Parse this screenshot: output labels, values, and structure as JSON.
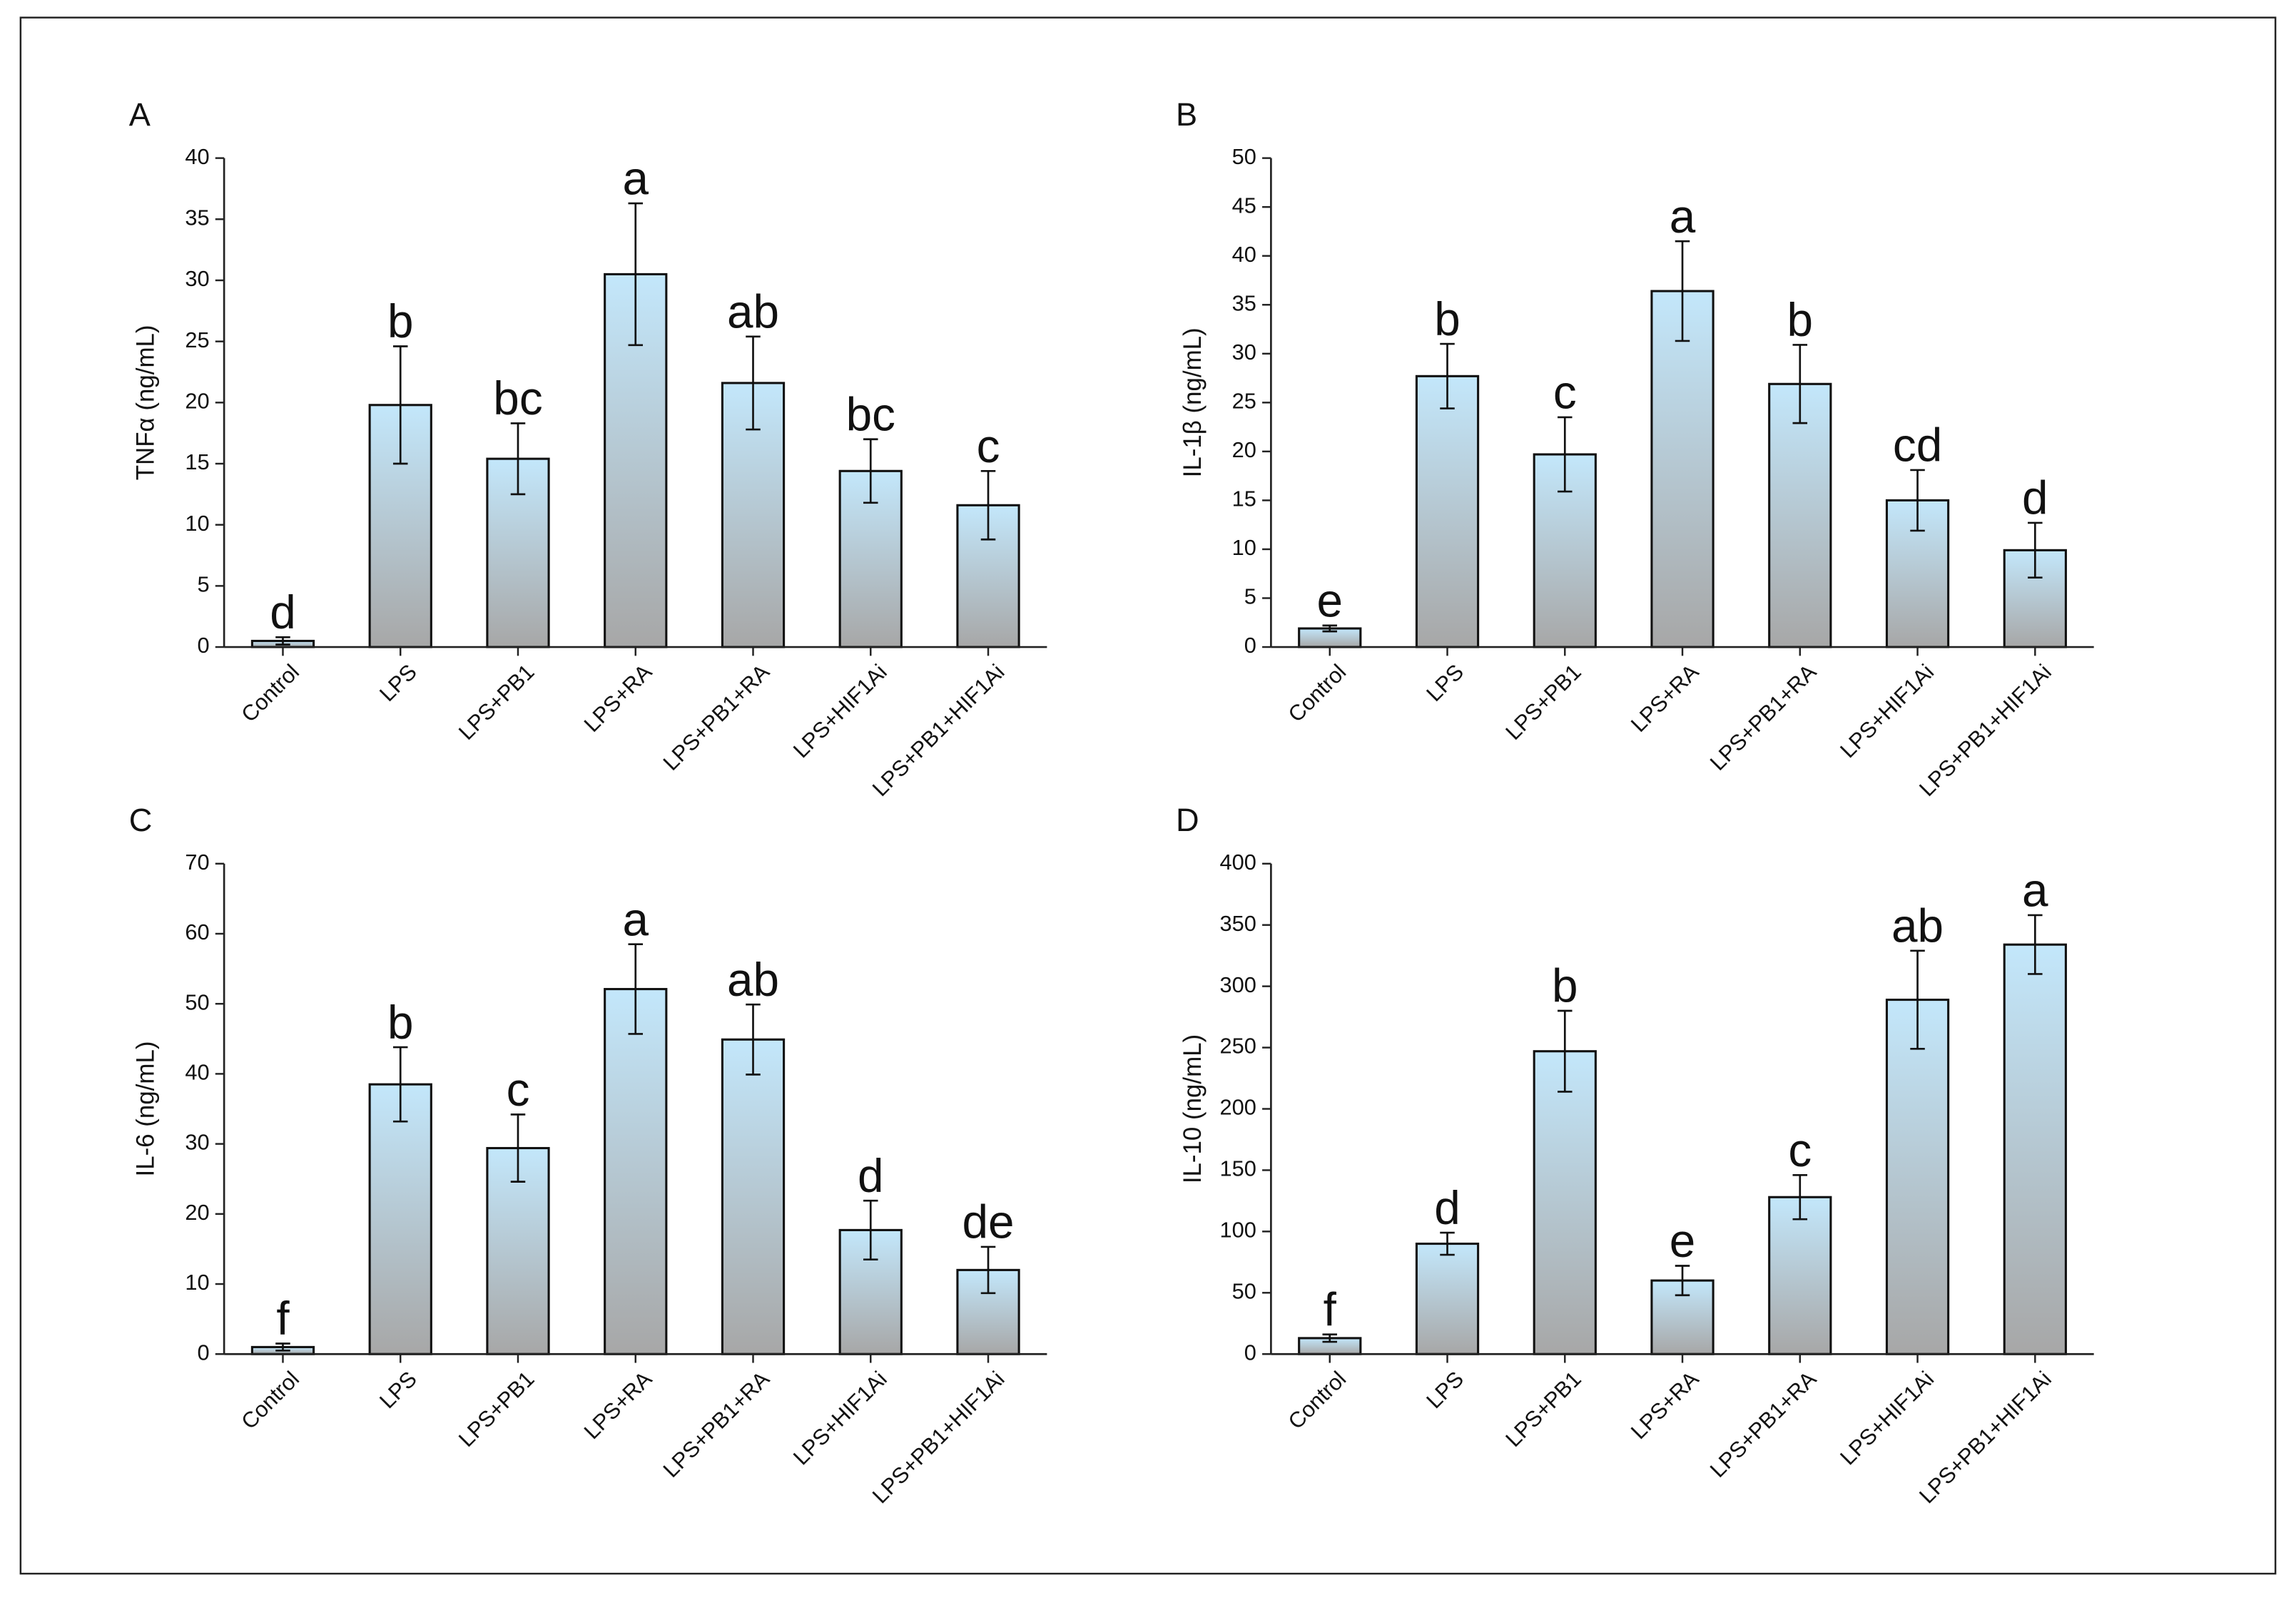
{
  "chart_data": [
    {
      "type": "bar",
      "panel_label": "A",
      "ylabel": "TNFα (ng/mL)",
      "categories": [
        "Control",
        "LPS",
        "LPS+PB1",
        "LPS+RA",
        "LPS+PB1+RA",
        "LPS+HIF1Ai",
        "LPS+PB1+HIF1Ai"
      ],
      "values": [
        0.5,
        19.8,
        15.4,
        30.5,
        21.6,
        14.4,
        11.6
      ],
      "errors": [
        0.3,
        4.8,
        2.9,
        5.8,
        3.8,
        2.6,
        2.8
      ],
      "annotations": [
        "d",
        "b",
        "bc",
        "a",
        "ab",
        "bc",
        "c"
      ],
      "ylim": [
        0,
        40
      ],
      "yticks": [
        0,
        5,
        10,
        15,
        20,
        25,
        30,
        35,
        40
      ],
      "colors": [
        "#c3e7fb",
        "#a7a7a7"
      ]
    },
    {
      "type": "bar",
      "panel_label": "B",
      "ylabel": "IL-1β (ng/mL)",
      "categories": [
        "Control",
        "LPS",
        "LPS+PB1",
        "LPS+RA",
        "LPS+PB1+RA",
        "LPS+HIF1Ai",
        "LPS+PB1+HIF1Ai"
      ],
      "values": [
        1.9,
        27.7,
        19.7,
        36.4,
        26.9,
        15.0,
        9.9
      ],
      "errors": [
        0.3,
        3.3,
        3.8,
        5.1,
        4.0,
        3.1,
        2.8
      ],
      "annotations": [
        "e",
        "b",
        "c",
        "a",
        "b",
        "cd",
        "d"
      ],
      "ylim": [
        0,
        50
      ],
      "yticks": [
        0,
        5,
        10,
        15,
        20,
        25,
        30,
        35,
        40,
        45,
        50
      ],
      "colors": [
        "#c3e7fb",
        "#a7a7a7"
      ]
    },
    {
      "type": "bar",
      "panel_label": "C",
      "ylabel": "IL-6 (ng/mL)",
      "categories": [
        "Control",
        "LPS",
        "LPS+PB1",
        "LPS+RA",
        "LPS+PB1+RA",
        "LPS+HIF1Ai",
        "LPS+PB1+HIF1Ai"
      ],
      "values": [
        1.0,
        38.5,
        29.4,
        52.1,
        44.9,
        17.7,
        12.0
      ],
      "errors": [
        0.5,
        5.3,
        4.8,
        6.4,
        5.0,
        4.2,
        3.3
      ],
      "annotations": [
        "f",
        "b",
        "c",
        "a",
        "ab",
        "d",
        "de"
      ],
      "ylim": [
        0,
        70
      ],
      "yticks": [
        0,
        10,
        20,
        30,
        40,
        50,
        60,
        70
      ],
      "colors": [
        "#c3e7fb",
        "#a7a7a7"
      ]
    },
    {
      "type": "bar",
      "panel_label": "D",
      "ylabel": "IL-10 (ng/mL)",
      "categories": [
        "Control",
        "LPS",
        "LPS+PB1",
        "LPS+RA",
        "LPS+PB1+RA",
        "LPS+HIF1Ai",
        "LPS+PB1+HIF1Ai"
      ],
      "values": [
        13,
        90,
        247,
        60,
        128,
        289,
        334
      ],
      "errors": [
        3,
        9,
        33,
        12,
        18,
        40,
        24
      ],
      "annotations": [
        "f",
        "d",
        "b",
        "e",
        "c",
        "ab",
        "a"
      ],
      "ylim": [
        0,
        400
      ],
      "yticks": [
        0,
        50,
        100,
        150,
        200,
        250,
        300,
        350,
        400
      ],
      "colors": [
        "#c3e7fb",
        "#a7a7a7"
      ]
    }
  ]
}
